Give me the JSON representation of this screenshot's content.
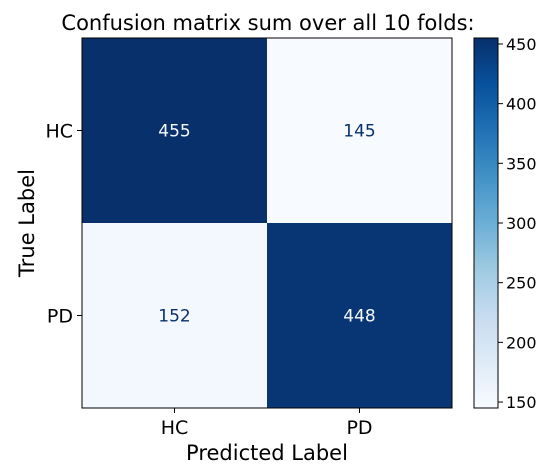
{
  "chart_data": {
    "type": "heatmap",
    "title": "Confusion matrix sum over all 10 folds:",
    "xlabel": "Predicted Label",
    "ylabel": "True Label",
    "x_categories": [
      "HC",
      "PD"
    ],
    "y_categories": [
      "HC",
      "PD"
    ],
    "values": [
      [
        455,
        145
      ],
      [
        152,
        448
      ]
    ],
    "colormap": "Blues",
    "colorbar": {
      "range": [
        145,
        455
      ],
      "ticks": [
        150,
        200,
        250,
        300,
        350,
        400,
        450
      ],
      "tick_labels": [
        "150",
        "200",
        "250",
        "300",
        "350",
        "400",
        "450"
      ]
    },
    "colors": {
      "low": "#f7fbff",
      "high": "#08306b",
      "text_on_dark": "#f7fbff",
      "text_on_light": "#08306b"
    }
  }
}
